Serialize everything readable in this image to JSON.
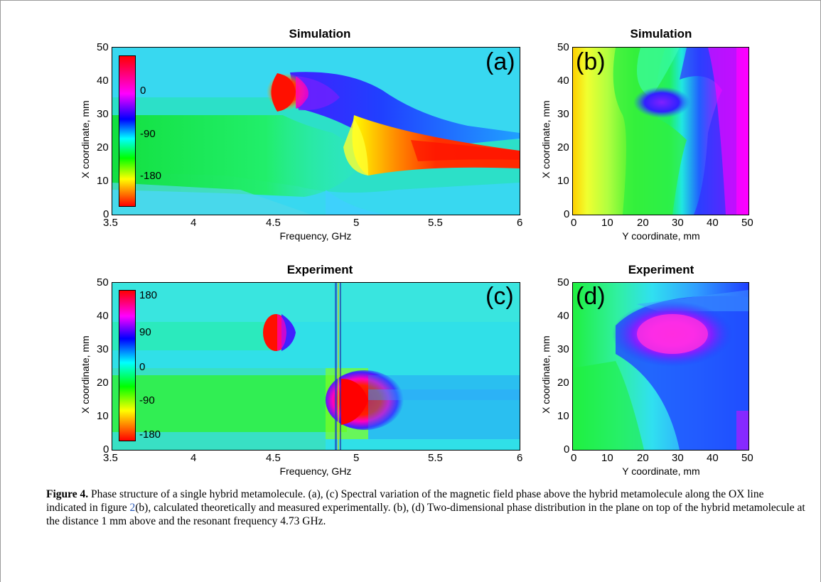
{
  "panels": {
    "a": {
      "title": "Simulation",
      "letter": "(a)",
      "xlabel": "Frequency, GHz",
      "ylabel": "X coordinate, mm",
      "xticks": [
        "3.5",
        "4",
        "4.5",
        "5",
        "5.5",
        "6"
      ],
      "yticks": [
        "50",
        "40",
        "30",
        "20",
        "10",
        "0"
      ],
      "colorbar_ticks": [
        "0",
        "-90",
        "-180"
      ]
    },
    "b": {
      "title": "Simulation",
      "letter": "(b)",
      "xlabel": "Y coordinate, mm",
      "ylabel": "X coordinate, mm",
      "xticks": [
        "0",
        "10",
        "20",
        "30",
        "40",
        "50"
      ],
      "yticks": [
        "50",
        "40",
        "30",
        "20",
        "10",
        "0"
      ]
    },
    "c": {
      "title": "Experiment",
      "letter": "(c)",
      "xlabel": "Frequency, GHz",
      "ylabel": "X coordinate, mm",
      "xticks": [
        "3.5",
        "4",
        "4.5",
        "5",
        "5.5",
        "6"
      ],
      "yticks": [
        "50",
        "40",
        "30",
        "20",
        "10",
        "0"
      ],
      "colorbar_ticks": [
        "180",
        "90",
        "0",
        "-90",
        "-180"
      ]
    },
    "d": {
      "title": "Experiment",
      "letter": "(d)",
      "xlabel": "Y coordinate, mm",
      "ylabel": "X coordinate, mm",
      "xticks": [
        "0",
        "10",
        "20",
        "30",
        "40",
        "50"
      ],
      "yticks": [
        "50",
        "40",
        "30",
        "20",
        "10",
        "0"
      ]
    }
  },
  "caption": {
    "label": "Figure 4.",
    "text1": " Phase structure of a single hybrid metamolecule. (a), (c) Spectral variation of the magnetic field phase above the hybrid metamolecule along the OX line indicated in figure ",
    "ref": "2",
    "text2": "(b), calculated theoretically and measured experimentally. (b), (d) Two-dimensional phase distribution in the plane on top of the hybrid metamolecule at the distance 1 mm above and the resonant frequency 4.73 GHz."
  },
  "colors": {
    "colormap": [
      "#ff0000",
      "#ff8000",
      "#ffff00",
      "#00ff00",
      "#00ffff",
      "#0000ff",
      "#ff00ff",
      "#ff0000"
    ]
  }
}
